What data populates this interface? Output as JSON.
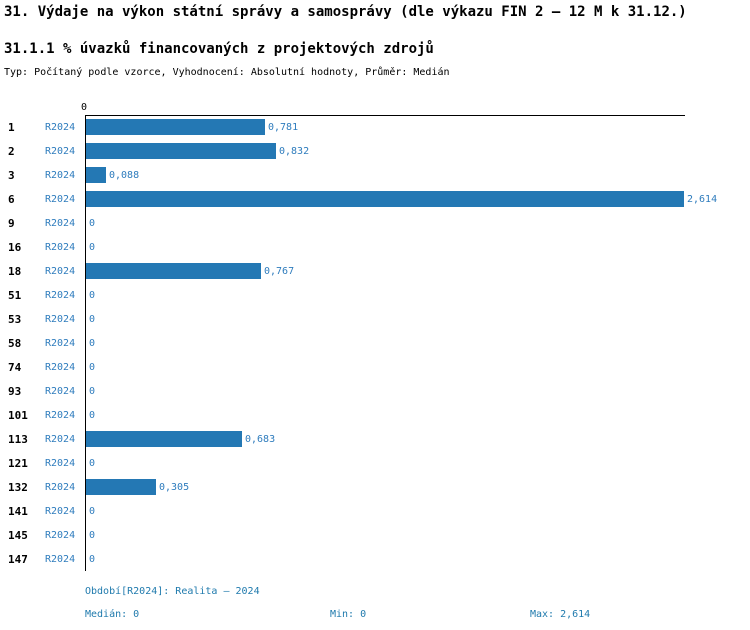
{
  "title": "31. Výdaje na výkon státní správy a samosprávy (dle výkazu FIN 2 – 12 M k 31.12.)",
  "subtitle": "31.1.1 % úvazků financovaných z projektových zdrojů",
  "meta": "Typ: Počítaný podle vzorce, Vyhodnocení: Absolutní hodnoty, Průměr: Medián",
  "chart_data": {
    "type": "bar",
    "orientation": "horizontal",
    "title": "31.1.1 % úvazků financovaných z projektových zdrojů",
    "series_label": "R2024",
    "categories": [
      "1",
      "2",
      "3",
      "6",
      "9",
      "16",
      "18",
      "51",
      "53",
      "58",
      "74",
      "93",
      "101",
      "113",
      "121",
      "132",
      "141",
      "145",
      "147"
    ],
    "values": [
      0.781,
      0.832,
      0.088,
      2.614,
      0,
      0,
      0.767,
      0,
      0,
      0,
      0,
      0,
      0,
      0.683,
      0,
      0.305,
      0,
      0,
      0
    ],
    "value_labels": [
      "0,781",
      "0,832",
      "0,088",
      "2,614",
      "0",
      "0",
      "0,767",
      "0",
      "0",
      "0",
      "0",
      "0",
      "0",
      "0,683",
      "0",
      "0,305",
      "0",
      "0",
      "0"
    ],
    "xlim": [
      0,
      2.614
    ],
    "axis_tick": "0",
    "grid": false,
    "legend": "none",
    "bar_color": "#2478b4"
  },
  "footer": {
    "period": "Období[R2024]: Realita – 2024",
    "median": "Medián: 0",
    "min": "Min: 0",
    "max": "Max: 2,614"
  }
}
